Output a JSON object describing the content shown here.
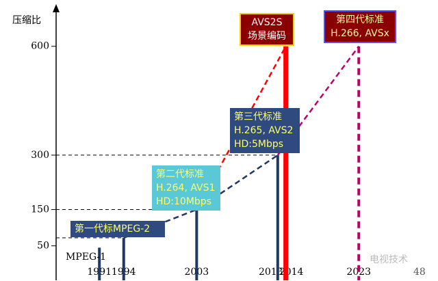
{
  "chart_data": {
    "type": "bar",
    "y_label": "压缩比",
    "ylim": [
      -45,
      705
    ],
    "yticks": [
      50,
      150,
      300,
      600
    ],
    "xlim": [
      1986,
      2031
    ],
    "xticks": [
      1991,
      1994,
      2003,
      2013,
      2014,
      2023
    ],
    "x": [
      1991,
      1994,
      2003,
      2013,
      2014,
      2023
    ],
    "values": [
      45,
      72,
      150,
      300,
      600,
      600
    ],
    "colors": [
      "#1f3864",
      "#1f3864",
      "#1f3864",
      "#1f3864",
      "#ff0000",
      "#c0006a"
    ],
    "annotations": [
      {
        "lines": [
          "MPEG-1"
        ]
      },
      {
        "lines": [
          "第一代标MPEG-2"
        ]
      },
      {
        "lines": [
          "第二代标准",
          "H.264, AVS1",
          "HD:10Mbps"
        ]
      },
      {
        "lines": [
          "第三代标准",
          "H.265, AVS2",
          "HD:5Mbps"
        ]
      },
      {
        "lines": [
          "AVS2S",
          "场景编码"
        ]
      },
      {
        "lines": [
          "第四代标准",
          "H.266, AVSx"
        ]
      }
    ],
    "page_number": "48",
    "watermark": "电视技术"
  }
}
